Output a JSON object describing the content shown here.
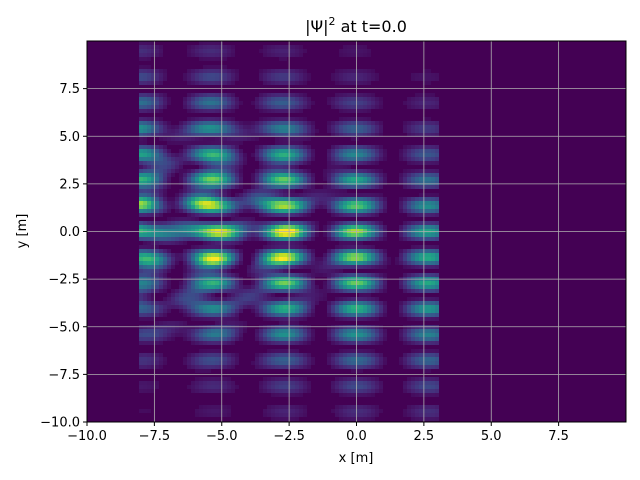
{
  "chart_data": {
    "type": "heatmap",
    "title_main": "|Ψ|",
    "title_sup": "2",
    "title_rest": " at t=0.0",
    "xlabel": "x [m]",
    "ylabel": "y [m]",
    "xlim": [
      -10,
      10
    ],
    "ylim": [
      -10,
      10
    ],
    "x_ticks": [
      -10,
      -7.5,
      -5,
      -2.5,
      0,
      2.5,
      5,
      7.5
    ],
    "y_ticks": [
      -10,
      -7.5,
      -5,
      -2.5,
      0,
      2.5,
      5,
      7.5
    ],
    "x_tick_labels": [
      "−10.0",
      "−7.5",
      "−5.0",
      "−2.5",
      "0.0",
      "2.5",
      "5.0",
      "7.5"
    ],
    "y_tick_labels": [
      "−10.0",
      "−7.5",
      "−5.0",
      "−2.5",
      "0.0",
      "2.5",
      "5.0",
      "7.5"
    ],
    "grid": true,
    "colormap": "viridis",
    "background_color": "#440154",
    "nonzero_region_x": [
      -8,
      3
    ],
    "nonzero_region_y": [
      -10,
      10
    ],
    "description_values": {
      "peak_points": [
        {
          "x": -3.5,
          "y": 1.0,
          "value": 1.0
        },
        {
          "x": -3.5,
          "y": -0.5,
          "value": 0.95
        },
        {
          "x": -6.0,
          "y": 0.7,
          "value": 0.85
        },
        {
          "x": -8.0,
          "y": 0.9,
          "value": 0.8
        },
        {
          "x": -8.0,
          "y": -0.7,
          "value": 0.8
        },
        {
          "x": 2.8,
          "y": 1.3,
          "value": 0.7
        },
        {
          "x": 2.8,
          "y": -1.9,
          "value": 0.7
        }
      ]
    }
  }
}
